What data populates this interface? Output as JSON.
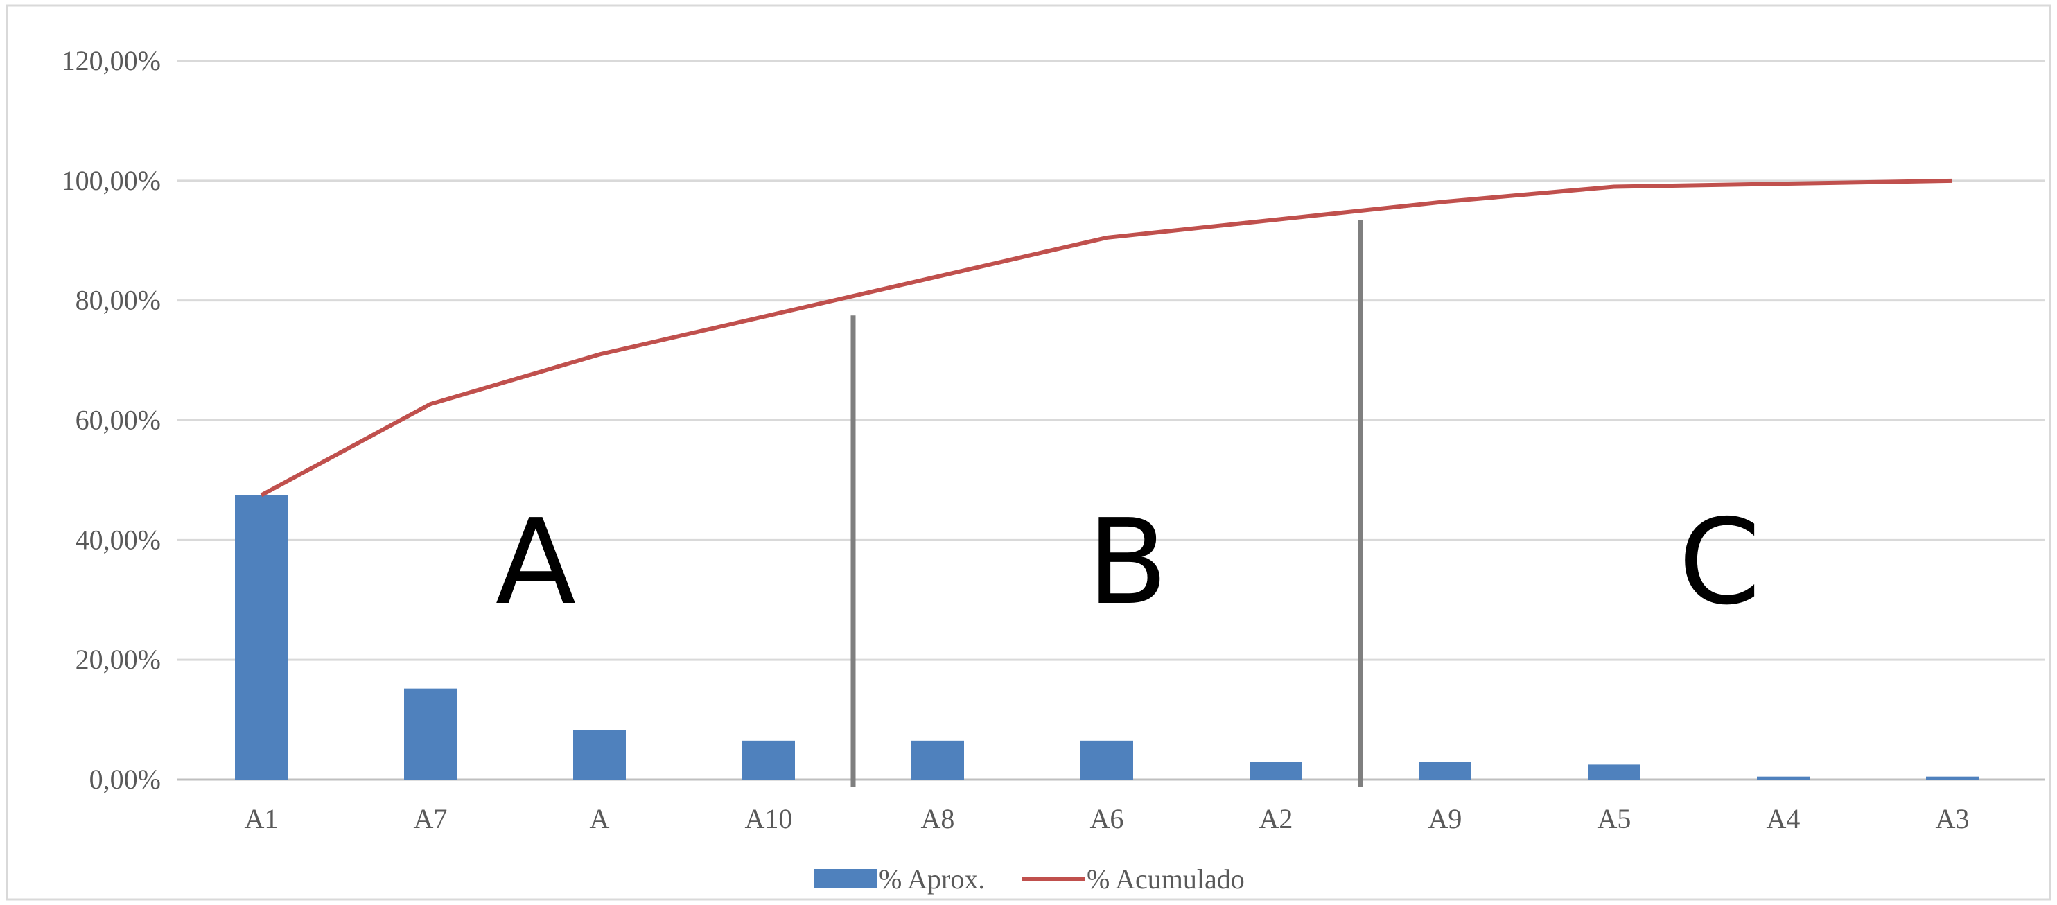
{
  "chart_data": {
    "type": "bar",
    "categories": [
      "A1",
      "A7",
      "A",
      "A10",
      "A8",
      "A6",
      "A2",
      "A9",
      "A5",
      "A4",
      "A3"
    ],
    "ylim": [
      0,
      120
    ],
    "y_ticks": [
      0,
      20,
      40,
      60,
      80,
      100,
      120
    ],
    "y_tick_labels": [
      "0,00%",
      "20,00%",
      "40,00%",
      "60,00%",
      "80,00%",
      "100,00%",
      "120,00%"
    ],
    "grid": true,
    "legend_position": "bottom",
    "series": [
      {
        "name": "% Aprox.",
        "type": "bar",
        "color": "#4f81bd",
        "values": [
          47.5,
          15.2,
          8.3,
          6.5,
          6.5,
          6.5,
          3.0,
          3.0,
          2.5,
          0.5,
          0.5
        ]
      },
      {
        "name": "% Acumulado",
        "type": "line",
        "color": "#c0504d",
        "values": [
          47.5,
          62.7,
          71.0,
          77.5,
          84.0,
          90.5,
          93.5,
          96.5,
          99.0,
          99.5,
          100.0
        ]
      }
    ],
    "zones": [
      {
        "label": "A",
        "from_category": "A1",
        "to_category": "A10"
      },
      {
        "label": "B",
        "from_category": "A8",
        "to_category": "A2"
      },
      {
        "label": "C",
        "from_category": "A9",
        "to_category": "A3"
      }
    ],
    "zone_divider_color": "#7f7f7f"
  }
}
